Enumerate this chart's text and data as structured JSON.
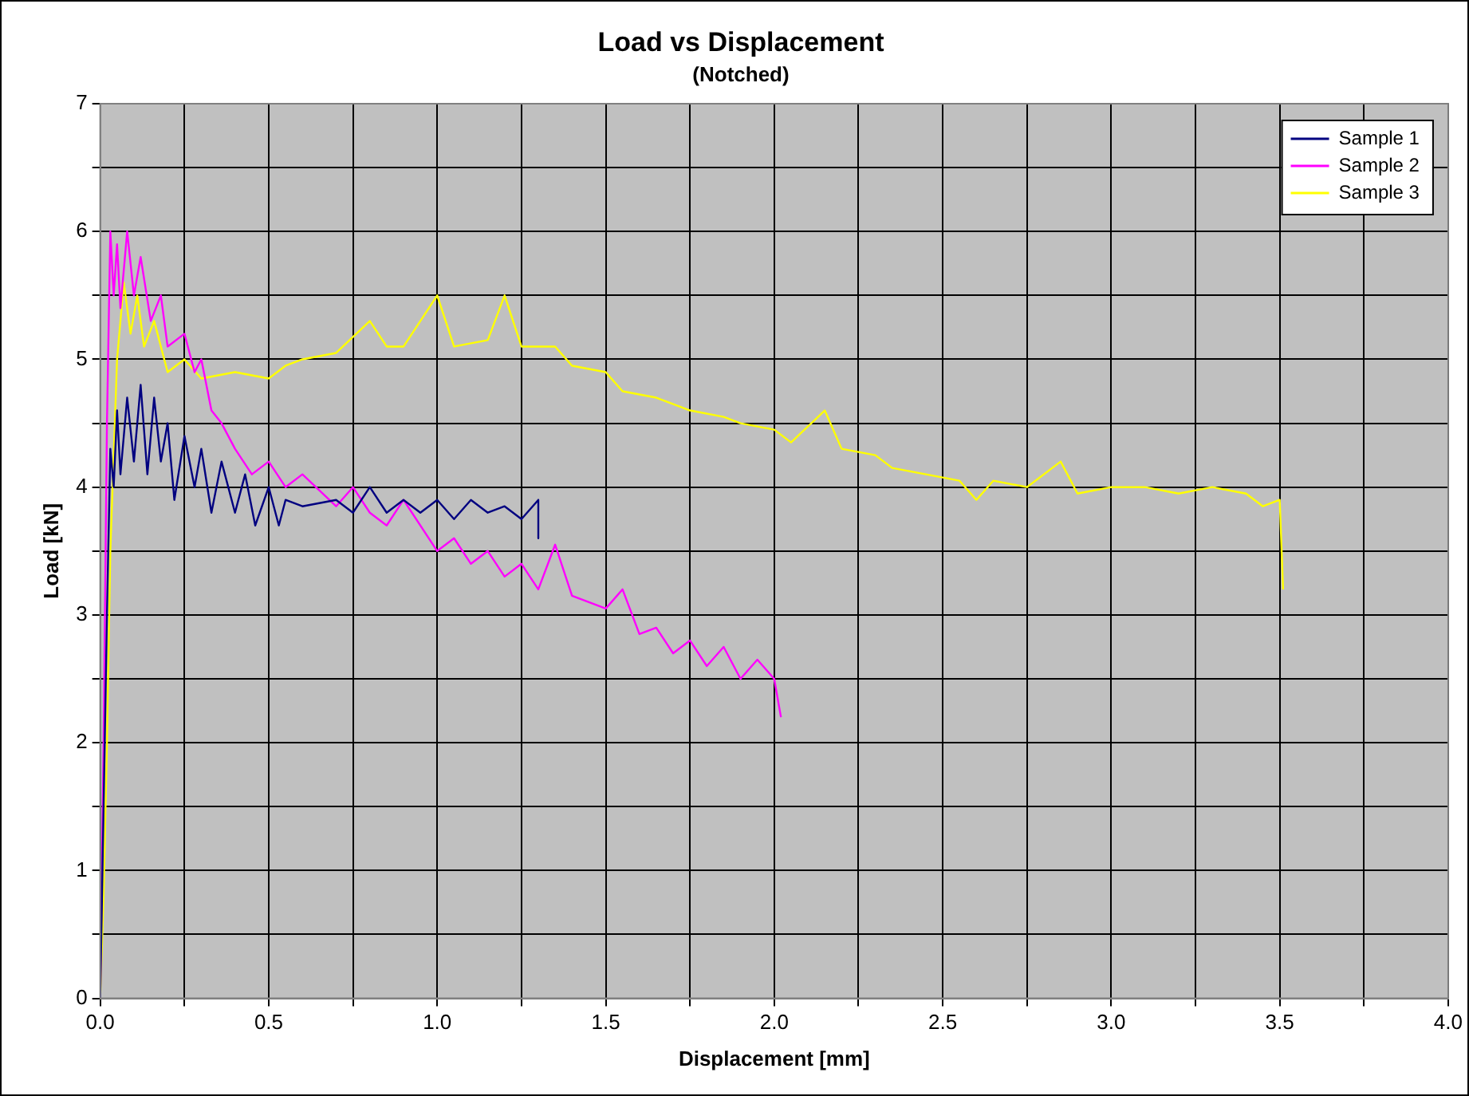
{
  "chart_data": {
    "type": "line",
    "title": "Load vs Displacement",
    "subtitle": "(Notched)",
    "xlabel": "Displacement [mm]",
    "ylabel": "Load [kN]",
    "xlim": [
      0,
      4
    ],
    "ylim": [
      0,
      7
    ],
    "xticks": [
      {
        "value": 0,
        "label": "0.0"
      },
      {
        "value": 0.25,
        "label": null
      },
      {
        "value": 0.5,
        "label": "0.5"
      },
      {
        "value": 0.75,
        "label": null
      },
      {
        "value": 1,
        "label": "1.0"
      },
      {
        "value": 1.25,
        "label": null
      },
      {
        "value": 1.5,
        "label": "1.5"
      },
      {
        "value": 1.75,
        "label": null
      },
      {
        "value": 2,
        "label": "2.0"
      },
      {
        "value": 2.25,
        "label": null
      },
      {
        "value": 2.5,
        "label": "2.5"
      },
      {
        "value": 2.75,
        "label": null
      },
      {
        "value": 3,
        "label": "3.0"
      },
      {
        "value": 3.25,
        "label": null
      },
      {
        "value": 3.5,
        "label": "3.5"
      },
      {
        "value": 3.75,
        "label": null
      },
      {
        "value": 4,
        "label": "4.0"
      }
    ],
    "yticks": [
      0,
      {
        "value": 0.5,
        "label": null
      },
      1,
      {
        "value": 1.5,
        "label": null
      },
      2,
      {
        "value": 2.5,
        "label": null
      },
      3,
      {
        "value": 3.5,
        "label": null
      },
      4,
      {
        "value": 4.5,
        "label": null
      },
      5,
      {
        "value": 5.5,
        "label": null
      },
      6,
      {
        "value": 6.5,
        "label": null
      },
      7
    ],
    "grid": true,
    "legend": "top right",
    "marker": "none",
    "line_style": "solid",
    "series": [
      {
        "name": "Sample 1",
        "color": "#000080",
        "x": [
          0,
          0.01,
          0.02,
          0.03,
          0.04,
          0.05,
          0.06,
          0.08,
          0.1,
          0.12,
          0.14,
          0.16,
          0.18,
          0.2,
          0.22,
          0.25,
          0.28,
          0.3,
          0.33,
          0.36,
          0.4,
          0.43,
          0.46,
          0.5,
          0.53,
          0.55,
          0.6,
          0.7,
          0.75,
          0.8,
          0.85,
          0.9,
          0.95,
          1.0,
          1.05,
          1.1,
          1.15,
          1.2,
          1.25,
          1.3,
          1.3
        ],
        "values": [
          0,
          1.5,
          3,
          4.3,
          4.0,
          4.6,
          4.1,
          4.7,
          4.2,
          4.8,
          4.1,
          4.7,
          4.2,
          4.5,
          3.9,
          4.4,
          4.0,
          4.3,
          3.8,
          4.2,
          3.8,
          4.1,
          3.7,
          4.0,
          3.7,
          3.9,
          3.85,
          3.9,
          3.8,
          4.0,
          3.8,
          3.9,
          3.8,
          3.9,
          3.75,
          3.9,
          3.8,
          3.85,
          3.75,
          3.9,
          3.6
        ]
      },
      {
        "name": "Sample 2",
        "color": "#ff00ff",
        "x": [
          0,
          0.01,
          0.02,
          0.03,
          0.04,
          0.05,
          0.06,
          0.08,
          0.1,
          0.12,
          0.15,
          0.18,
          0.2,
          0.25,
          0.28,
          0.3,
          0.33,
          0.36,
          0.4,
          0.45,
          0.5,
          0.55,
          0.6,
          0.7,
          0.75,
          0.8,
          0.85,
          0.9,
          1.0,
          1.05,
          1.1,
          1.15,
          1.2,
          1.25,
          1.3,
          1.35,
          1.4,
          1.5,
          1.55,
          1.6,
          1.65,
          1.7,
          1.75,
          1.8,
          1.85,
          1.9,
          1.95,
          2.0,
          2.02
        ],
        "values": [
          0,
          2,
          4.5,
          6.0,
          5.5,
          5.9,
          5.4,
          6.0,
          5.5,
          5.8,
          5.3,
          5.5,
          5.1,
          5.2,
          4.9,
          5.0,
          4.6,
          4.5,
          4.3,
          4.1,
          4.2,
          4.0,
          4.1,
          3.85,
          4.0,
          3.8,
          3.7,
          3.9,
          3.5,
          3.6,
          3.4,
          3.5,
          3.3,
          3.4,
          3.2,
          3.55,
          3.15,
          3.05,
          3.2,
          2.85,
          2.9,
          2.7,
          2.8,
          2.6,
          2.75,
          2.5,
          2.65,
          2.5,
          2.2
        ]
      },
      {
        "name": "Sample 3",
        "color": "#ffff00",
        "x": [
          0,
          0.01,
          0.02,
          0.03,
          0.05,
          0.07,
          0.09,
          0.11,
          0.13,
          0.16,
          0.2,
          0.25,
          0.3,
          0.4,
          0.5,
          0.55,
          0.6,
          0.7,
          0.8,
          0.85,
          0.9,
          1.0,
          1.05,
          1.15,
          1.2,
          1.25,
          1.35,
          1.4,
          1.5,
          1.55,
          1.65,
          1.75,
          1.85,
          1.9,
          2.0,
          2.05,
          2.15,
          2.2,
          2.3,
          2.35,
          2.45,
          2.55,
          2.6,
          2.65,
          2.75,
          2.85,
          2.9,
          3.0,
          3.1,
          3.2,
          3.3,
          3.4,
          3.45,
          3.5,
          3.51
        ],
        "values": [
          0,
          0.8,
          2,
          3.5,
          5.0,
          5.6,
          5.2,
          5.5,
          5.1,
          5.3,
          4.9,
          5.0,
          4.85,
          4.9,
          4.85,
          4.95,
          5.0,
          5.05,
          5.3,
          5.1,
          5.1,
          5.5,
          5.1,
          5.15,
          5.5,
          5.1,
          5.1,
          4.95,
          4.9,
          4.75,
          4.7,
          4.6,
          4.55,
          4.5,
          4.45,
          4.35,
          4.6,
          4.3,
          4.25,
          4.15,
          4.1,
          4.05,
          3.9,
          4.05,
          4.0,
          4.2,
          3.95,
          4.0,
          4.0,
          3.95,
          4.0,
          3.95,
          3.85,
          3.9,
          3.2
        ]
      }
    ]
  }
}
